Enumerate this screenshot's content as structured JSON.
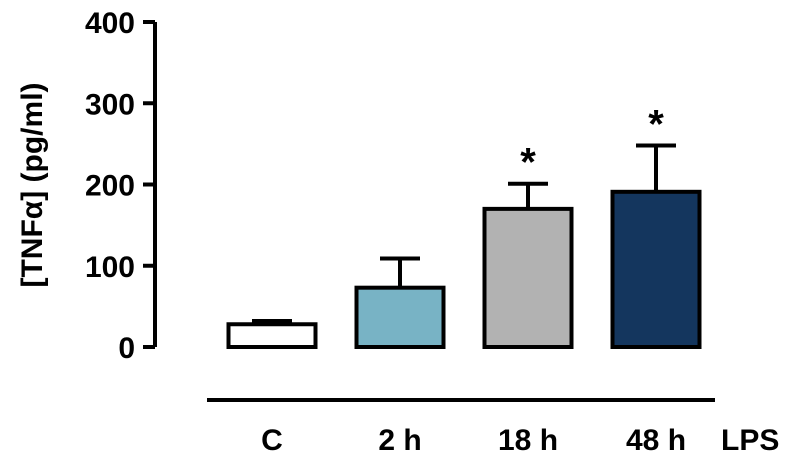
{
  "chart_data": {
    "type": "bar",
    "categories": [
      "C",
      "2 h",
      "18 h",
      "48 h"
    ],
    "group_label": "LPS",
    "values": [
      28,
      73,
      170,
      191
    ],
    "errors": [
      4,
      36,
      31,
      57
    ],
    "significance": [
      "",
      "",
      "*",
      "*"
    ],
    "bar_colors": [
      "#ffffff",
      "#78b3c5",
      "#b2b2b2",
      "#14365e"
    ],
    "ylabel": "[TNFα] (pg/ml)",
    "ylim": [
      0,
      400
    ],
    "yticks": [
      0,
      100,
      200,
      300,
      400
    ],
    "grid": false
  }
}
